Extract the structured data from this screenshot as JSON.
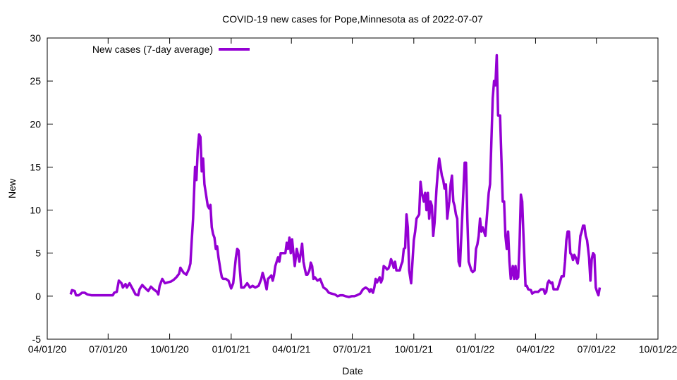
{
  "chart_data": {
    "type": "line",
    "title": "COVID-19 new cases for Pope,Minnesota as of 2022-07-07",
    "xlabel": "Date",
    "ylabel": "New",
    "x_unit": "days since 04/01/20",
    "xlim": [
      0,
      913
    ],
    "ylim": [
      -5,
      30
    ],
    "yticks": [
      -5,
      0,
      5,
      10,
      15,
      20,
      25,
      30
    ],
    "xticks": [
      {
        "day": 0,
        "label": "04/01/20"
      },
      {
        "day": 91,
        "label": "07/01/20"
      },
      {
        "day": 183,
        "label": "10/01/20"
      },
      {
        "day": 275,
        "label": "01/01/21"
      },
      {
        "day": 365,
        "label": "04/01/21"
      },
      {
        "day": 456,
        "label": "07/01/21"
      },
      {
        "day": 548,
        "label": "10/01/21"
      },
      {
        "day": 640,
        "label": "01/01/22"
      },
      {
        "day": 730,
        "label": "04/01/22"
      },
      {
        "day": 821,
        "label": "07/01/22"
      },
      {
        "day": 913,
        "label": "10/01/22"
      }
    ],
    "grid": false,
    "legend_position": "top-left",
    "series": [
      {
        "name": "New cases (7-day average)",
        "color": "#9400d3",
        "points": [
          [
            35,
            0.2
          ],
          [
            37,
            0.7
          ],
          [
            41,
            0.6
          ],
          [
            43,
            0.1
          ],
          [
            47,
            0.1
          ],
          [
            52,
            0.4
          ],
          [
            56,
            0.4
          ],
          [
            60,
            0.2
          ],
          [
            66,
            0.1
          ],
          [
            98,
            0.1
          ],
          [
            100,
            0.4
          ],
          [
            104,
            0.5
          ],
          [
            107,
            1.8
          ],
          [
            111,
            1.5
          ],
          [
            113,
            1.0
          ],
          [
            117,
            1.4
          ],
          [
            119,
            1.0
          ],
          [
            123,
            1.5
          ],
          [
            128,
            0.8
          ],
          [
            132,
            0.2
          ],
          [
            136,
            0.1
          ],
          [
            138,
            0.8
          ],
          [
            142,
            1.3
          ],
          [
            147,
            0.9
          ],
          [
            151,
            0.6
          ],
          [
            155,
            1.1
          ],
          [
            159,
            0.8
          ],
          [
            164,
            0.5
          ],
          [
            166,
            0.2
          ],
          [
            168,
            1.2
          ],
          [
            172,
            2.0
          ],
          [
            176,
            1.5
          ],
          [
            180,
            1.6
          ],
          [
            185,
            1.7
          ],
          [
            189,
            1.9
          ],
          [
            193,
            2.2
          ],
          [
            197,
            2.6
          ],
          [
            199,
            3.3
          ],
          [
            204,
            2.7
          ],
          [
            208,
            2.5
          ],
          [
            212,
            3.2
          ],
          [
            214,
            3.8
          ],
          [
            216,
            6.5
          ],
          [
            218,
            9.0
          ],
          [
            221,
            15.0
          ],
          [
            223,
            13.5
          ],
          [
            225,
            17.0
          ],
          [
            227,
            18.8
          ],
          [
            229,
            18.5
          ],
          [
            231,
            14.5
          ],
          [
            233,
            16.0
          ],
          [
            235,
            13.0
          ],
          [
            237,
            12.0
          ],
          [
            240,
            10.5
          ],
          [
            242,
            10.2
          ],
          [
            244,
            10.6
          ],
          [
            246,
            8.0
          ],
          [
            248,
            7.2
          ],
          [
            250,
            6.8
          ],
          [
            252,
            5.5
          ],
          [
            254,
            5.8
          ],
          [
            256,
            4.5
          ],
          [
            259,
            3.0
          ],
          [
            261,
            2.2
          ],
          [
            263,
            2.0
          ],
          [
            267,
            2.0
          ],
          [
            271,
            1.8
          ],
          [
            275,
            0.9
          ],
          [
            278,
            1.5
          ],
          [
            282,
            4.5
          ],
          [
            284,
            5.5
          ],
          [
            286,
            5.3
          ],
          [
            288,
            3.0
          ],
          [
            290,
            1.0
          ],
          [
            294,
            1.0
          ],
          [
            299,
            1.5
          ],
          [
            303,
            1.0
          ],
          [
            307,
            1.2
          ],
          [
            311,
            1.0
          ],
          [
            316,
            1.2
          ],
          [
            320,
            2.0
          ],
          [
            322,
            2.7
          ],
          [
            324,
            2.2
          ],
          [
            328,
            0.8
          ],
          [
            330,
            2.0
          ],
          [
            335,
            2.4
          ],
          [
            337,
            1.8
          ],
          [
            339,
            2.4
          ],
          [
            341,
            3.5
          ],
          [
            345,
            4.5
          ],
          [
            347,
            4.0
          ],
          [
            349,
            5.0
          ],
          [
            354,
            5.0
          ],
          [
            356,
            5.0
          ],
          [
            358,
            6.2
          ],
          [
            360,
            5.5
          ],
          [
            362,
            6.8
          ],
          [
            364,
            5.0
          ],
          [
            366,
            6.6
          ],
          [
            368,
            5.0
          ],
          [
            370,
            3.5
          ],
          [
            373,
            5.5
          ],
          [
            377,
            4.0
          ],
          [
            379,
            5.0
          ],
          [
            381,
            6.1
          ],
          [
            383,
            4.0
          ],
          [
            385,
            3.2
          ],
          [
            387,
            2.5
          ],
          [
            389,
            2.5
          ],
          [
            392,
            3.0
          ],
          [
            394,
            3.9
          ],
          [
            396,
            3.5
          ],
          [
            398,
            2.0
          ],
          [
            400,
            2.2
          ],
          [
            404,
            1.8
          ],
          [
            408,
            2.0
          ],
          [
            413,
            1.0
          ],
          [
            417,
            0.8
          ],
          [
            421,
            0.4
          ],
          [
            425,
            0.3
          ],
          [
            430,
            0.2
          ],
          [
            434,
            0.0
          ],
          [
            438,
            0.1
          ],
          [
            442,
            0.1
          ],
          [
            446,
            0.0
          ],
          [
            451,
            -0.1
          ],
          [
            455,
            0.0
          ],
          [
            459,
            0.0
          ],
          [
            463,
            0.1
          ],
          [
            468,
            0.3
          ],
          [
            472,
            0.8
          ],
          [
            476,
            1.0
          ],
          [
            480,
            0.8
          ],
          [
            482,
            0.5
          ],
          [
            484,
            0.8
          ],
          [
            487,
            0.4
          ],
          [
            489,
            1.0
          ],
          [
            491,
            2.0
          ],
          [
            493,
            1.6
          ],
          [
            497,
            2.2
          ],
          [
            499,
            1.6
          ],
          [
            501,
            2.0
          ],
          [
            503,
            3.5
          ],
          [
            506,
            3.3
          ],
          [
            508,
            3.1
          ],
          [
            510,
            3.2
          ],
          [
            512,
            3.6
          ],
          [
            514,
            4.3
          ],
          [
            516,
            3.9
          ],
          [
            518,
            3.3
          ],
          [
            520,
            4.0
          ],
          [
            522,
            3.0
          ],
          [
            527,
            3.0
          ],
          [
            529,
            3.6
          ],
          [
            531,
            4.0
          ],
          [
            533,
            5.5
          ],
          [
            535,
            5.6
          ],
          [
            537,
            9.5
          ],
          [
            539,
            8.0
          ],
          [
            541,
            3.0
          ],
          [
            544,
            1.5
          ],
          [
            548,
            6.5
          ],
          [
            550,
            7.5
          ],
          [
            552,
            9.0
          ],
          [
            556,
            9.5
          ],
          [
            558,
            13.3
          ],
          [
            560,
            12.0
          ],
          [
            563,
            11.0
          ],
          [
            565,
            12.0
          ],
          [
            567,
            10.0
          ],
          [
            569,
            12.0
          ],
          [
            571,
            9.0
          ],
          [
            573,
            11.0
          ],
          [
            575,
            10.5
          ],
          [
            577,
            7.0
          ],
          [
            579,
            8.5
          ],
          [
            582,
            12.5
          ],
          [
            584,
            14.5
          ],
          [
            586,
            16.0
          ],
          [
            588,
            15.0
          ],
          [
            590,
            14.0
          ],
          [
            592,
            13.5
          ],
          [
            594,
            12.5
          ],
          [
            596,
            13.0
          ],
          [
            598,
            9.0
          ],
          [
            601,
            11.0
          ],
          [
            603,
            13.0
          ],
          [
            605,
            14.0
          ],
          [
            607,
            11.0
          ],
          [
            609,
            10.5
          ],
          [
            611,
            9.5
          ],
          [
            613,
            9.0
          ],
          [
            615,
            4.0
          ],
          [
            617,
            3.5
          ],
          [
            622,
            12.0
          ],
          [
            624,
            15.5
          ],
          [
            626,
            15.5
          ],
          [
            628,
            9.0
          ],
          [
            630,
            4.0
          ],
          [
            632,
            3.5
          ],
          [
            634,
            3.0
          ],
          [
            636,
            2.8
          ],
          [
            639,
            3.0
          ],
          [
            641,
            5.5
          ],
          [
            643,
            6.0
          ],
          [
            645,
            7.0
          ],
          [
            647,
            9.0
          ],
          [
            649,
            7.5
          ],
          [
            651,
            8.0
          ],
          [
            655,
            7.0
          ],
          [
            658,
            10.0
          ],
          [
            660,
            12.0
          ],
          [
            662,
            13.0
          ],
          [
            664,
            18.0
          ],
          [
            666,
            23.0
          ],
          [
            668,
            25.0
          ],
          [
            670,
            24.5
          ],
          [
            672,
            28.0
          ],
          [
            674,
            21.0
          ],
          [
            677,
            21.0
          ],
          [
            679,
            16.0
          ],
          [
            681,
            11.0
          ],
          [
            683,
            11.0
          ],
          [
            685,
            7.0
          ],
          [
            687,
            5.5
          ],
          [
            689,
            7.5
          ],
          [
            691,
            4.0
          ],
          [
            693,
            2.0
          ],
          [
            696,
            3.5
          ],
          [
            698,
            2.0
          ],
          [
            700,
            3.5
          ],
          [
            702,
            2.0
          ],
          [
            704,
            2.2
          ],
          [
            706,
            6.0
          ],
          [
            708,
            11.8
          ],
          [
            710,
            11.0
          ],
          [
            712,
            7.0
          ],
          [
            715,
            1.2
          ],
          [
            717,
            1.2
          ],
          [
            719,
            0.8
          ],
          [
            723,
            0.7
          ],
          [
            725,
            0.3
          ],
          [
            729,
            0.5
          ],
          [
            734,
            0.5
          ],
          [
            738,
            0.8
          ],
          [
            742,
            0.8
          ],
          [
            744,
            0.3
          ],
          [
            746,
            0.5
          ],
          [
            748,
            1.5
          ],
          [
            750,
            1.8
          ],
          [
            753,
            1.5
          ],
          [
            755,
            1.6
          ],
          [
            757,
            0.8
          ],
          [
            763,
            0.8
          ],
          [
            765,
            1.3
          ],
          [
            767,
            1.8
          ],
          [
            769,
            2.3
          ],
          [
            772,
            2.3
          ],
          [
            774,
            4.0
          ],
          [
            776,
            6.5
          ],
          [
            778,
            7.5
          ],
          [
            780,
            7.5
          ],
          [
            782,
            5.0
          ],
          [
            784,
            4.8
          ],
          [
            786,
            4.2
          ],
          [
            788,
            4.8
          ],
          [
            790,
            4.5
          ],
          [
            793,
            3.8
          ],
          [
            795,
            5.0
          ],
          [
            797,
            7.0
          ],
          [
            799,
            7.5
          ],
          [
            801,
            8.2
          ],
          [
            803,
            8.2
          ],
          [
            805,
            7.0
          ],
          [
            807,
            6.5
          ],
          [
            810,
            4.5
          ],
          [
            812,
            1.8
          ],
          [
            814,
            4.3
          ],
          [
            816,
            5.0
          ],
          [
            818,
            4.8
          ],
          [
            820,
            1.0
          ],
          [
            822,
            0.5
          ],
          [
            824,
            0.1
          ],
          [
            826,
            1.0
          ]
        ]
      }
    ]
  }
}
